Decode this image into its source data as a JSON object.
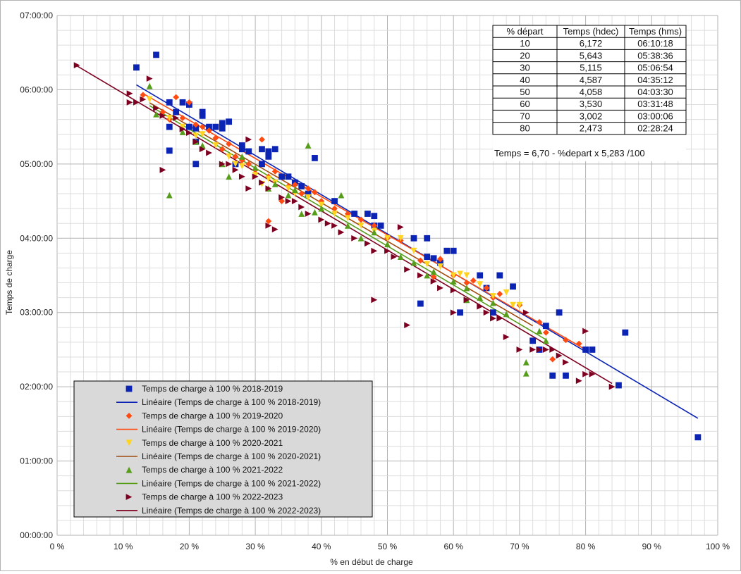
{
  "chart_data": {
    "type": "scatter",
    "xlabel": "% en début de charge",
    "ylabel": "Temps de charge",
    "xlim": [
      0,
      100
    ],
    "ylim": [
      0,
      7
    ],
    "x_ticks": [
      "0 %",
      "10 %",
      "20 %",
      "30 %",
      "40 %",
      "50 %",
      "60 %",
      "70 %",
      "80 %",
      "90 %",
      "100 %"
    ],
    "y_ticks": [
      "00:00:00",
      "01:00:00",
      "02:00:00",
      "03:00:00",
      "04:00:00",
      "05:00:00",
      "06:00:00",
      "07:00:00"
    ],
    "grid": true,
    "legend_position": "bottom-left",
    "series": [
      {
        "name": "Temps de charge à 100 % 2018-2019",
        "trend_name": "Linéaire (Temps de charge à 100 % 2018-2019)",
        "marker": "square",
        "color": "#0c24b4",
        "trend_color": "#0c24b4",
        "trend_range": [
          12,
          97
        ],
        "trend": [
          6.7,
          -0.05283
        ],
        "points": [
          [
            12,
            6.3
          ],
          [
            15,
            6.47
          ],
          [
            17,
            5.83
          ],
          [
            17,
            5.5
          ],
          [
            17,
            5.18
          ],
          [
            18,
            5.7
          ],
          [
            19,
            5.83
          ],
          [
            20,
            5.8
          ],
          [
            20,
            5.5
          ],
          [
            21,
            5.3
          ],
          [
            21,
            5.0
          ],
          [
            21,
            5.48
          ],
          [
            22,
            5.7
          ],
          [
            22,
            5.65
          ],
          [
            23,
            5.5
          ],
          [
            24,
            5.5
          ],
          [
            25,
            5.55
          ],
          [
            25,
            5.48
          ],
          [
            26,
            5.57
          ],
          [
            27,
            5.0
          ],
          [
            28,
            5.2
          ],
          [
            28,
            5.25
          ],
          [
            29,
            5.17
          ],
          [
            31,
            5.2
          ],
          [
            31,
            5.0
          ],
          [
            32,
            5.17
          ],
          [
            32,
            5.1
          ],
          [
            33,
            5.2
          ],
          [
            34,
            4.83
          ],
          [
            35,
            4.83
          ],
          [
            36,
            4.75
          ],
          [
            37,
            4.7
          ],
          [
            38,
            4.6
          ],
          [
            39,
            5.08
          ],
          [
            42,
            4.5
          ],
          [
            45,
            4.33
          ],
          [
            47,
            4.33
          ],
          [
            48,
            4.3
          ],
          [
            48,
            4.17
          ],
          [
            49,
            4.17
          ],
          [
            54,
            4.0
          ],
          [
            55,
            3.12
          ],
          [
            56,
            4.0
          ],
          [
            56,
            3.75
          ],
          [
            57,
            3.73
          ],
          [
            58,
            3.67
          ],
          [
            59,
            3.83
          ],
          [
            60,
            3.83
          ],
          [
            61,
            3.0
          ],
          [
            64,
            3.5
          ],
          [
            65,
            3.33
          ],
          [
            66,
            3.0
          ],
          [
            67,
            3.5
          ],
          [
            69,
            3.35
          ],
          [
            72,
            2.62
          ],
          [
            73,
            2.5
          ],
          [
            74,
            2.82
          ],
          [
            75,
            2.15
          ],
          [
            76,
            3.0
          ],
          [
            77,
            2.15
          ],
          [
            80,
            2.5
          ],
          [
            81,
            2.5
          ],
          [
            85,
            2.02
          ],
          [
            86,
            2.73
          ],
          [
            97,
            1.32
          ]
        ]
      },
      {
        "name": "Temps de charge à 100 % 2019-2020",
        "trend_name": "Linéaire (Temps de charge à 100 % 2019-2020)",
        "marker": "diamond",
        "color": "#ff4a12",
        "trend_color": "#ff4a12",
        "trend_range": [
          13,
          80
        ],
        "trend": [
          6.62,
          -0.0515
        ],
        "points": [
          [
            13,
            5.93
          ],
          [
            16,
            5.7
          ],
          [
            17,
            5.6
          ],
          [
            18,
            5.9
          ],
          [
            19,
            5.62
          ],
          [
            20,
            5.83
          ],
          [
            21,
            5.53
          ],
          [
            22,
            5.5
          ],
          [
            23,
            5.45
          ],
          [
            24,
            5.35
          ],
          [
            25,
            5.2
          ],
          [
            26,
            5.27
          ],
          [
            27,
            5.1
          ],
          [
            28,
            5.05
          ],
          [
            29,
            5.0
          ],
          [
            30,
            4.92
          ],
          [
            31,
            5.33
          ],
          [
            32,
            4.83
          ],
          [
            32,
            4.23
          ],
          [
            33,
            4.9
          ],
          [
            34,
            4.5
          ],
          [
            35,
            4.7
          ],
          [
            36,
            4.72
          ],
          [
            37,
            4.6
          ],
          [
            38,
            4.67
          ],
          [
            39,
            4.62
          ],
          [
            40,
            4.5
          ],
          [
            42,
            4.4
          ],
          [
            44,
            4.33
          ],
          [
            46,
            4.25
          ],
          [
            48,
            4.17
          ],
          [
            50,
            4.0
          ],
          [
            52,
            3.97
          ],
          [
            55,
            3.7
          ],
          [
            57,
            3.48
          ],
          [
            58,
            3.72
          ],
          [
            60,
            3.5
          ],
          [
            62,
            3.4
          ],
          [
            63,
            3.43
          ],
          [
            65,
            3.33
          ],
          [
            66,
            3.2
          ],
          [
            67,
            3.25
          ],
          [
            70,
            3.1
          ],
          [
            73,
            2.87
          ],
          [
            74,
            2.73
          ],
          [
            75,
            2.37
          ],
          [
            77,
            2.63
          ],
          [
            79,
            2.58
          ]
        ]
      },
      {
        "name": "Temps de charge à 100 % 2020-2021",
        "trend_name": "Linéaire (Temps de charge à 100 % 2020-2021)",
        "marker": "triangle-down",
        "color": "#ffd320",
        "trend_color": "#a04d10",
        "trend_range": [
          14,
          72
        ],
        "trend": [
          6.55,
          -0.0518
        ],
        "points": [
          [
            14,
            5.87
          ],
          [
            17,
            5.62
          ],
          [
            19,
            5.5
          ],
          [
            21,
            5.38
          ],
          [
            22,
            5.4
          ],
          [
            24,
            5.25
          ],
          [
            26,
            5.1
          ],
          [
            27,
            5.0
          ],
          [
            28,
            4.97
          ],
          [
            30,
            4.85
          ],
          [
            31,
            4.73
          ],
          [
            32,
            4.8
          ],
          [
            33,
            4.75
          ],
          [
            35,
            4.67
          ],
          [
            36,
            4.6
          ],
          [
            38,
            4.55
          ],
          [
            40,
            4.45
          ],
          [
            42,
            4.33
          ],
          [
            44,
            4.27
          ],
          [
            46,
            4.17
          ],
          [
            48,
            4.1
          ],
          [
            50,
            4.0
          ],
          [
            52,
            4.0
          ],
          [
            54,
            3.83
          ],
          [
            56,
            3.65
          ],
          [
            58,
            3.62
          ],
          [
            60,
            3.5
          ],
          [
            61,
            3.52
          ],
          [
            62,
            3.5
          ],
          [
            64,
            3.38
          ],
          [
            66,
            3.22
          ],
          [
            68,
            3.27
          ],
          [
            69,
            3.1
          ],
          [
            70,
            3.1
          ]
        ]
      },
      {
        "name": "Temps de charge à 100 % 2021-2022",
        "trend_name": "Linéaire (Temps de charge à 100 % 2021-2022)",
        "marker": "triangle-up",
        "color": "#579d1c",
        "trend_color": "#579d1c",
        "trend_range": [
          14,
          74
        ],
        "trend": [
          6.52,
          -0.0525
        ],
        "points": [
          [
            14,
            6.05
          ],
          [
            15,
            5.67
          ],
          [
            17,
            4.58
          ],
          [
            19,
            5.43
          ],
          [
            21,
            5.3
          ],
          [
            22,
            5.25
          ],
          [
            25,
            5.0
          ],
          [
            26,
            4.83
          ],
          [
            28,
            5.1
          ],
          [
            30,
            4.95
          ],
          [
            32,
            4.67
          ],
          [
            33,
            4.73
          ],
          [
            35,
            4.58
          ],
          [
            36,
            4.65
          ],
          [
            37,
            4.33
          ],
          [
            38,
            5.25
          ],
          [
            39,
            4.35
          ],
          [
            40,
            4.4
          ],
          [
            43,
            4.58
          ],
          [
            44,
            4.17
          ],
          [
            46,
            4.0
          ],
          [
            48,
            4.08
          ],
          [
            50,
            3.92
          ],
          [
            52,
            3.75
          ],
          [
            54,
            3.67
          ],
          [
            56,
            3.5
          ],
          [
            57,
            3.55
          ],
          [
            60,
            3.42
          ],
          [
            62,
            3.17
          ],
          [
            62,
            3.33
          ],
          [
            64,
            3.2
          ],
          [
            66,
            3.13
          ],
          [
            68,
            2.98
          ],
          [
            71,
            2.33
          ],
          [
            71,
            2.18
          ],
          [
            73,
            2.75
          ],
          [
            74,
            2.62
          ]
        ]
      },
      {
        "name": "Temps de charge à 100 % 2022-2023",
        "trend_name": "Linéaire (Temps de charge à 100 % 2022-2023)",
        "marker": "triangle-right",
        "color": "#7e0021",
        "trend_color": "#7e0021",
        "trend_range": [
          3,
          84
        ],
        "trend": [
          6.48,
          -0.0528
        ],
        "points": [
          [
            3,
            6.33
          ],
          [
            11,
            5.95
          ],
          [
            11,
            5.83
          ],
          [
            12,
            5.83
          ],
          [
            13,
            5.87
          ],
          [
            14,
            6.15
          ],
          [
            15,
            5.75
          ],
          [
            16,
            5.65
          ],
          [
            16,
            4.92
          ],
          [
            18,
            5.62
          ],
          [
            19,
            5.47
          ],
          [
            20,
            5.42
          ],
          [
            21,
            5.3
          ],
          [
            22,
            5.2
          ],
          [
            23,
            5.15
          ],
          [
            25,
            5.0
          ],
          [
            26,
            5.0
          ],
          [
            27,
            4.92
          ],
          [
            28,
            4.83
          ],
          [
            29,
            5.33
          ],
          [
            29,
            4.67
          ],
          [
            30,
            4.83
          ],
          [
            31,
            4.75
          ],
          [
            32,
            4.67
          ],
          [
            32,
            4.17
          ],
          [
            33,
            4.12
          ],
          [
            34,
            4.55
          ],
          [
            35,
            4.5
          ],
          [
            36,
            4.5
          ],
          [
            37,
            4.42
          ],
          [
            38,
            4.33
          ],
          [
            40,
            4.25
          ],
          [
            41,
            4.2
          ],
          [
            42,
            4.17
          ],
          [
            43,
            4.08
          ],
          [
            45,
            4.0
          ],
          [
            47,
            3.93
          ],
          [
            48,
            3.83
          ],
          [
            48,
            3.17
          ],
          [
            50,
            3.83
          ],
          [
            51,
            3.75
          ],
          [
            52,
            4.15
          ],
          [
            53,
            3.58
          ],
          [
            53,
            2.83
          ],
          [
            55,
            3.5
          ],
          [
            57,
            3.42
          ],
          [
            58,
            3.33
          ],
          [
            60,
            3.3
          ],
          [
            60,
            3.0
          ],
          [
            62,
            3.17
          ],
          [
            64,
            3.08
          ],
          [
            65,
            3.0
          ],
          [
            66,
            2.92
          ],
          [
            67,
            2.92
          ],
          [
            68,
            2.67
          ],
          [
            70,
            2.5
          ],
          [
            71,
            3.0
          ],
          [
            72,
            2.5
          ],
          [
            73,
            2.5
          ],
          [
            74,
            2.5
          ],
          [
            75,
            2.5
          ],
          [
            76,
            2.42
          ],
          [
            77,
            2.33
          ],
          [
            79,
            2.08
          ],
          [
            80,
            2.17
          ],
          [
            80,
            2.75
          ],
          [
            81,
            2.17
          ],
          [
            84,
            2.0
          ]
        ]
      }
    ],
    "table": {
      "headers": [
        "% départ",
        "Temps (hdec)",
        "Temps (hms)"
      ],
      "rows": [
        [
          "10",
          "6,172",
          "06:10:18"
        ],
        [
          "20",
          "5,643",
          "05:38:36"
        ],
        [
          "30",
          "5,115",
          "05:06:54"
        ],
        [
          "40",
          "4,587",
          "04:35:12"
        ],
        [
          "50",
          "4,058",
          "04:03:30"
        ],
        [
          "60",
          "3,530",
          "03:31:48"
        ],
        [
          "70",
          "3,002",
          "03:00:06"
        ],
        [
          "80",
          "2,473",
          "02:28:24"
        ]
      ],
      "formula": "Temps = 6,70 - %depart x 5,283 /100"
    }
  }
}
